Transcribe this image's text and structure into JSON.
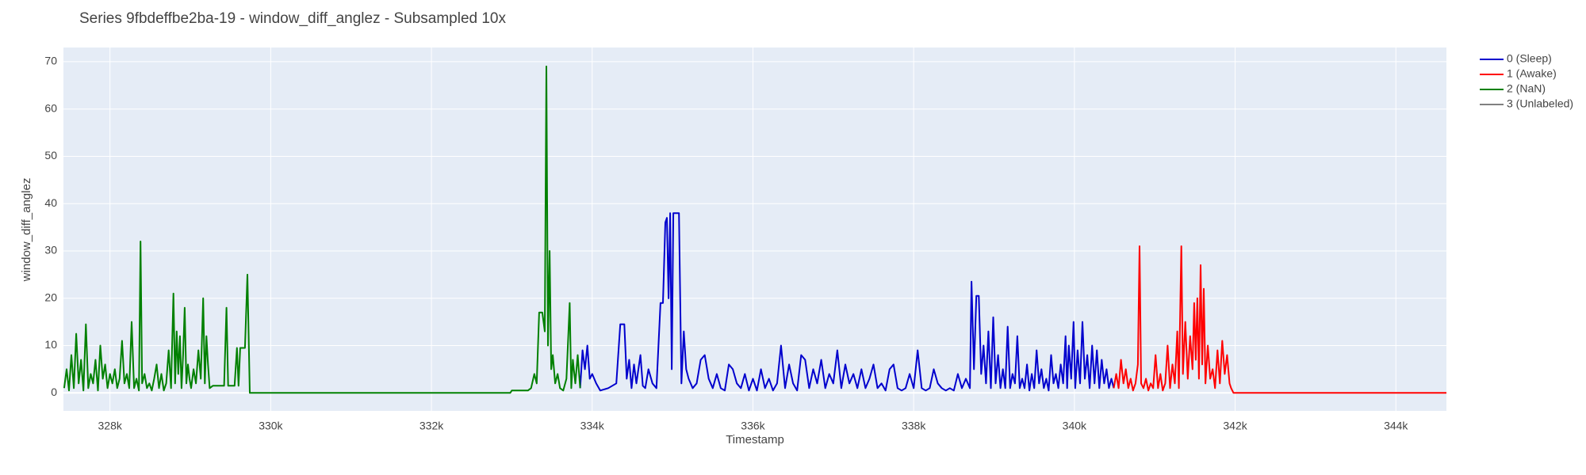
{
  "chart_data": {
    "type": "line",
    "title": "Series 9fbdeffbe2ba-19 - window_diff_anglez - Subsampled 10x",
    "x_label": "Timestamp",
    "y_label": "window_diff_anglez",
    "xlim": [
      327421,
      344629
    ],
    "ylim": [
      -3.8,
      73
    ],
    "xticks": [
      {
        "value": 328000,
        "label": "328k"
      },
      {
        "value": 330000,
        "label": "330k"
      },
      {
        "value": 332000,
        "label": "332k"
      },
      {
        "value": 334000,
        "label": "334k"
      },
      {
        "value": 336000,
        "label": "336k"
      },
      {
        "value": 338000,
        "label": "338k"
      },
      {
        "value": 340000,
        "label": "340k"
      },
      {
        "value": 342000,
        "label": "342k"
      },
      {
        "value": 344000,
        "label": "344k"
      }
    ],
    "yticks": [
      0,
      10,
      20,
      30,
      40,
      50,
      60,
      70
    ],
    "grid": true,
    "legend": "outside-top-right",
    "series": [
      {
        "name": "0 (Sleep)",
        "color": "#0000cd",
        "x": [
          333850,
          333880,
          333910,
          333940,
          333970,
          334000,
          334050,
          334100,
          334200,
          334300,
          334350,
          334400,
          334430,
          334460,
          334490,
          334520,
          334550,
          334600,
          334630,
          334660,
          334700,
          334750,
          334800,
          334850,
          334880,
          334910,
          334930,
          334950,
          334970,
          334990,
          335010,
          335040,
          335080,
          335110,
          335140,
          335170,
          335200,
          335250,
          335300,
          335350,
          335400,
          335450,
          335500,
          335550,
          335600,
          335650,
          335700,
          335750,
          335800,
          335850,
          335900,
          335950,
          336000,
          336050,
          336100,
          336150,
          336200,
          336250,
          336300,
          336350,
          336400,
          336450,
          336500,
          336550,
          336600,
          336650,
          336700,
          336750,
          336800,
          336850,
          336900,
          336950,
          337000,
          337050,
          337100,
          337150,
          337200,
          337250,
          337300,
          337350,
          337400,
          337450,
          337500,
          337550,
          337600,
          337650,
          337700,
          337750,
          337800,
          337850,
          337900,
          337950,
          338000,
          338050,
          338100,
          338150,
          338200,
          338250,
          338300,
          338350,
          338400,
          338450,
          338500,
          338550,
          338600,
          338650,
          338700,
          338720,
          338750,
          338780,
          338810,
          338840,
          338870,
          338900,
          338930,
          338960,
          338990,
          339020,
          339050,
          339080,
          339110,
          339140,
          339170,
          339200,
          339230,
          339260,
          339290,
          339320,
          339350,
          339380,
          339410,
          339440,
          339470,
          339500,
          339530,
          339560,
          339590,
          339620,
          339650,
          339680,
          339710,
          339740,
          339770,
          339800,
          339830,
          339860,
          339890,
          339910,
          339930,
          339960,
          339990,
          340010,
          340040,
          340070,
          340100,
          340130,
          340160,
          340190,
          340220,
          340250,
          340280,
          340310,
          340340,
          340370,
          340400,
          340430,
          340460,
          340490
        ],
        "values": [
          1,
          9,
          5,
          10,
          3,
          4,
          2,
          0.5,
          1,
          2,
          14.5,
          14.5,
          3,
          7,
          1,
          6,
          2,
          8,
          1.5,
          1,
          5,
          2,
          1,
          19,
          19,
          36,
          37,
          20,
          38,
          5,
          38,
          38,
          38,
          2,
          13,
          5,
          3,
          1,
          2,
          7,
          8,
          3,
          1,
          4,
          1,
          0.5,
          6,
          5,
          2,
          1,
          4,
          0.5,
          3,
          0.5,
          5,
          1,
          3,
          0.5,
          2,
          10,
          1,
          6,
          2,
          0.5,
          8,
          7,
          1,
          5,
          2,
          7,
          1,
          4,
          2,
          9,
          1,
          6,
          2,
          4,
          1,
          5,
          1,
          3,
          6,
          1,
          2,
          0.5,
          5,
          6,
          1,
          0.5,
          1,
          4,
          1,
          9,
          1,
          0.5,
          1,
          5,
          2,
          1,
          0.5,
          1,
          0.5,
          4,
          1,
          3,
          1,
          23.5,
          5,
          20.5,
          20.5,
          4,
          10,
          2,
          13,
          1,
          16,
          2,
          8,
          1,
          5,
          1,
          14,
          1,
          4,
          2,
          12,
          1,
          3,
          1,
          6,
          0.5,
          4,
          1,
          9,
          2,
          5,
          1,
          3,
          0.5,
          8,
          2,
          4,
          1,
          6,
          2,
          12,
          1,
          10,
          3,
          15,
          1,
          9,
          2,
          15,
          3,
          8,
          1,
          10,
          2,
          9,
          1,
          7,
          2,
          5,
          1,
          3,
          1
        ]
      },
      {
        "name": "1 (Awake)",
        "color": "#ff0000",
        "x": [
          340490,
          340520,
          340550,
          340580,
          340610,
          340640,
          340670,
          340700,
          340730,
          340760,
          340790,
          340810,
          340830,
          340860,
          340890,
          340920,
          340950,
          340980,
          341010,
          341040,
          341070,
          341100,
          341130,
          341160,
          341190,
          341220,
          341250,
          341280,
          341300,
          341330,
          341350,
          341380,
          341410,
          341440,
          341470,
          341490,
          341510,
          341530,
          341550,
          341570,
          341590,
          341610,
          341630,
          341660,
          341690,
          341720,
          341750,
          341780,
          341810,
          341840,
          341870,
          341900,
          341930,
          341950,
          341980,
          343000,
          344629
        ],
        "values": [
          1,
          4,
          1,
          7,
          2,
          5,
          1,
          3,
          0.5,
          2,
          6,
          31,
          2,
          1,
          3,
          0.5,
          2,
          1,
          8,
          1,
          4,
          0.5,
          2,
          10,
          1,
          6,
          2,
          13,
          1,
          31,
          4,
          15,
          3,
          12,
          5,
          19,
          7,
          20,
          3,
          27,
          6,
          22,
          2,
          10,
          3,
          5,
          1,
          9,
          2,
          11,
          4,
          8,
          2,
          1,
          0,
          0,
          0
        ]
      },
      {
        "name": "2 (NaN)",
        "color": "#008000",
        "x": [
          327430,
          327460,
          327490,
          327520,
          327550,
          327580,
          327610,
          327640,
          327670,
          327700,
          327730,
          327760,
          327790,
          327820,
          327850,
          327880,
          327910,
          327940,
          327970,
          328000,
          328030,
          328060,
          328090,
          328120,
          328150,
          328180,
          328210,
          328240,
          328270,
          328300,
          328330,
          328360,
          328380,
          328400,
          328430,
          328460,
          328490,
          328520,
          328550,
          328580,
          328610,
          328640,
          328670,
          328700,
          328730,
          328760,
          328790,
          328810,
          328830,
          328850,
          328870,
          328890,
          328910,
          328930,
          328950,
          328970,
          328990,
          329010,
          329040,
          329070,
          329100,
          329130,
          329160,
          329180,
          329200,
          329220,
          329240,
          329280,
          329330,
          329380,
          329420,
          329450,
          329470,
          329550,
          329580,
          329600,
          329620,
          329680,
          329710,
          329740,
          330500,
          331500,
          332500,
          332980,
          333000,
          333200,
          333240,
          333280,
          333310,
          333340,
          333380,
          333410,
          333430,
          333450,
          333470,
          333490,
          333510,
          333540,
          333570,
          333600,
          333640,
          333680,
          333720,
          333740,
          333760,
          333790,
          333820,
          333850
        ],
        "values": [
          1,
          5,
          0.5,
          8,
          1,
          12.5,
          2,
          7,
          0.5,
          14.5,
          1,
          4,
          2,
          7,
          0.5,
          10,
          3,
          6,
          1,
          4,
          2,
          5,
          1,
          3,
          11,
          2,
          4,
          1,
          15,
          1,
          3,
          0.5,
          32,
          2,
          4,
          1,
          2,
          0.5,
          3,
          6,
          1,
          4,
          0.5,
          2,
          9,
          1,
          21,
          2,
          13,
          4,
          12,
          1,
          8,
          18,
          2,
          6,
          3,
          1,
          5,
          2,
          9,
          3,
          20,
          2,
          12,
          6,
          1,
          1.5,
          1.5,
          1.5,
          1.5,
          18,
          1.5,
          1.5,
          9.5,
          1.5,
          9.5,
          9.5,
          25,
          0,
          0,
          0,
          0,
          0,
          0.5,
          0.5,
          1,
          4,
          2,
          17,
          17,
          13,
          69,
          10,
          30,
          5,
          8,
          2,
          4,
          1,
          0.5,
          3,
          19,
          1,
          7,
          2,
          8,
          1
        ]
      },
      {
        "name": "3 (Unlabeled)",
        "color": "#808080",
        "x": [],
        "values": []
      }
    ]
  }
}
